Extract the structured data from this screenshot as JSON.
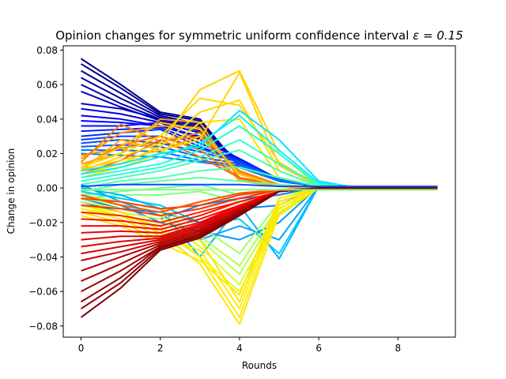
{
  "chart_data": {
    "type": "line",
    "title": "Opinion changes for symmetric uniform confidence interval ε = 0.15",
    "title_prefix": "Opinion changes for symmetric uniform confidence interval ",
    "title_math": "ε = 0.15",
    "xlabel": "Rounds",
    "ylabel": "Change in opinion",
    "xlim": [
      -0.45,
      9.45
    ],
    "ylim": [
      -0.0865,
      0.0825
    ],
    "xticks": [
      0,
      2,
      4,
      6,
      8
    ],
    "xtick_labels": [
      "0",
      "2",
      "4",
      "6",
      "8"
    ],
    "yticks": [
      -0.08,
      -0.06,
      -0.04,
      -0.02,
      0.0,
      0.02,
      0.04,
      0.06,
      0.08
    ],
    "ytick_labels": [
      "−0.08",
      "−0.06",
      "−0.04",
      "−0.02",
      "0.00",
      "0.02",
      "0.04",
      "0.06",
      "0.08"
    ],
    "grid": false,
    "legend": "none",
    "colormap": "jet",
    "x": [
      0,
      1,
      2,
      3,
      4,
      5,
      6,
      7,
      8,
      9
    ],
    "series": [
      {
        "color": "#00008f",
        "values": [
          0.075,
          0.06,
          0.044,
          0.04,
          0.012,
          0.004,
          0.001,
          0.001,
          0.001,
          0.001
        ]
      },
      {
        "color": "#00008f",
        "values": [
          0.072,
          0.058,
          0.043,
          0.039,
          0.013,
          0.004,
          0.001,
          0.001,
          0.001,
          0.001
        ]
      },
      {
        "color": "#000096",
        "values": [
          0.068,
          0.055,
          0.042,
          0.037,
          0.014,
          0.004,
          0.001,
          0.001,
          0.001,
          0.001
        ]
      },
      {
        "color": "#0000a0",
        "values": [
          0.064,
          0.052,
          0.041,
          0.036,
          0.014,
          0.004,
          0.001,
          0.001,
          0.001,
          0.001
        ]
      },
      {
        "color": "#0000aa",
        "values": [
          0.06,
          0.049,
          0.04,
          0.035,
          0.015,
          0.004,
          0.001,
          0.001,
          0.001,
          0.001
        ]
      },
      {
        "color": "#0000b8",
        "values": [
          0.056,
          0.047,
          0.039,
          0.034,
          0.015,
          0.004,
          0.001,
          0.001,
          0.001,
          0.001
        ]
      },
      {
        "color": "#0000c8",
        "values": [
          0.049,
          0.046,
          0.04,
          0.033,
          0.016,
          0.004,
          0.001,
          0.001,
          0.001,
          0.001
        ]
      },
      {
        "color": "#0000d8",
        "values": [
          0.046,
          0.043,
          0.038,
          0.032,
          0.016,
          0.004,
          0.001,
          0.001,
          0.001,
          0.001
        ]
      },
      {
        "color": "#0000ff",
        "values": [
          0.042,
          0.04,
          0.036,
          0.03,
          0.016,
          0.004,
          0.001,
          0.001,
          0.001,
          0.001
        ]
      },
      {
        "color": "#0000ff",
        "values": [
          0.039,
          0.038,
          0.036,
          0.029,
          0.017,
          0.005,
          0.001,
          0.001,
          0.001,
          0.001
        ]
      },
      {
        "color": "#0010ff",
        "values": [
          0.036,
          0.036,
          0.038,
          0.028,
          0.017,
          0.005,
          0.001,
          0.001,
          0.001,
          0.001
        ]
      },
      {
        "color": "#0020ff",
        "values": [
          0.033,
          0.034,
          0.035,
          0.026,
          0.016,
          0.005,
          0.001,
          0.001,
          0.001,
          0.001
        ]
      },
      {
        "color": "#0030ff",
        "values": [
          0.03,
          0.032,
          0.034,
          0.024,
          0.016,
          0.005,
          0.001,
          0.001,
          0.001,
          0.001
        ]
      },
      {
        "color": "#0040ff",
        "values": [
          0.028,
          0.03,
          0.03,
          0.023,
          0.015,
          0.005,
          0.001,
          0.001,
          0.001,
          0.001
        ]
      },
      {
        "color": "#0050ff",
        "values": [
          0.026,
          0.028,
          0.026,
          0.021,
          0.015,
          0.005,
          0.001,
          0.001,
          0.001,
          0.001
        ]
      },
      {
        "color": "#0060ff",
        "values": [
          0.024,
          0.025,
          0.024,
          0.018,
          0.014,
          0.005,
          0.001,
          0.001,
          0.001,
          0.001
        ]
      },
      {
        "color": "#0070ff",
        "values": [
          0.022,
          0.022,
          0.021,
          0.016,
          0.013,
          0.005,
          0.001,
          0.001,
          0.001,
          0.001
        ]
      },
      {
        "color": "#0080ff",
        "values": [
          0.02,
          0.019,
          0.018,
          0.015,
          0.012,
          0.004,
          0.001,
          0.001,
          0.001,
          0.001
        ]
      },
      {
        "color": "#ff8c00",
        "values": [
          0.019,
          0.023,
          0.027,
          0.032,
          0.009,
          0.002,
          0.0,
          0.0,
          0.0,
          0.0
        ]
      },
      {
        "color": "#ff9a00",
        "values": [
          0.017,
          0.032,
          0.036,
          0.035,
          0.006,
          0.002,
          0.0,
          0.0,
          0.0,
          0.0
        ]
      },
      {
        "color": "#ff8000",
        "values": [
          0.015,
          0.037,
          0.027,
          0.03,
          0.01,
          0.002,
          0.0,
          0.0,
          0.0,
          0.0
        ]
      },
      {
        "color": "#ffa000",
        "values": [
          0.014,
          0.02,
          0.04,
          0.038,
          0.005,
          0.002,
          0.0,
          0.0,
          0.0,
          0.0
        ]
      },
      {
        "color": "#ff7000",
        "values": [
          0.012,
          0.025,
          0.03,
          0.022,
          0.006,
          0.001,
          0.0,
          0.0,
          0.0,
          0.0
        ]
      },
      {
        "color": "#ffb000",
        "values": [
          0.01,
          0.028,
          0.022,
          0.03,
          0.004,
          0.001,
          0.0,
          0.0,
          0.0,
          0.0
        ]
      },
      {
        "color": "#ff6000",
        "values": [
          0.008,
          0.016,
          0.028,
          0.018,
          0.006,
          0.001,
          0.0,
          0.0,
          0.0,
          0.0
        ]
      },
      {
        "color": "#ffc000",
        "values": [
          0.012,
          0.024,
          0.038,
          0.034,
          0.008,
          0.001,
          0.0,
          0.0,
          0.0,
          0.0
        ]
      },
      {
        "color": "#ffd200",
        "values": [
          0.01,
          0.018,
          0.026,
          0.057,
          0.068,
          0.02,
          0.001,
          0.0,
          0.0,
          0.0
        ]
      },
      {
        "color": "#ffd700",
        "values": [
          0.012,
          0.02,
          0.03,
          0.052,
          0.048,
          0.015,
          0.001,
          0.0,
          0.0,
          0.0
        ]
      },
      {
        "color": "#ffdc00",
        "values": [
          0.008,
          0.014,
          0.024,
          0.044,
          0.051,
          0.01,
          0.001,
          0.0,
          0.0,
          0.0
        ]
      },
      {
        "color": "#ffe000",
        "values": [
          0.006,
          0.012,
          0.02,
          0.038,
          0.04,
          0.006,
          0.001,
          0.0,
          0.0,
          0.0
        ]
      },
      {
        "color": "#ffd400",
        "values": [
          0.011,
          0.016,
          0.022,
          0.028,
          0.067,
          0.013,
          0.001,
          0.0,
          0.0,
          0.0
        ]
      },
      {
        "color": "#00e6ff",
        "values": [
          0.01,
          0.014,
          0.02,
          0.024,
          0.045,
          0.028,
          0.004,
          0.0,
          0.0,
          0.0
        ]
      },
      {
        "color": "#10f0ee",
        "values": [
          0.008,
          0.012,
          0.018,
          0.026,
          0.042,
          0.022,
          0.003,
          0.0,
          0.0,
          0.0
        ]
      },
      {
        "color": "#20ffdf",
        "values": [
          0.006,
          0.01,
          0.014,
          0.022,
          0.036,
          0.02,
          0.002,
          0.0,
          0.0,
          0.0
        ]
      },
      {
        "color": "#30ffcf",
        "values": [
          0.004,
          0.008,
          0.012,
          0.018,
          0.028,
          0.014,
          0.002,
          0.0,
          0.0,
          0.0
        ]
      },
      {
        "color": "#40ffbf",
        "values": [
          0.002,
          0.006,
          0.01,
          0.016,
          0.022,
          0.01,
          0.001,
          0.0,
          0.0,
          0.0
        ]
      },
      {
        "color": "#50ffaf",
        "values": [
          0.0,
          0.004,
          0.006,
          0.01,
          0.012,
          0.006,
          0.001,
          0.0,
          0.0,
          0.0
        ]
      },
      {
        "color": "#60ff9f",
        "values": [
          -0.002,
          0.002,
          0.004,
          0.006,
          0.004,
          0.002,
          0.0,
          0.0,
          0.0,
          0.0
        ]
      },
      {
        "color": "#70ff8f",
        "values": [
          -0.004,
          -0.002,
          0.0,
          0.002,
          -0.004,
          -0.002,
          0.0,
          0.0,
          0.0,
          0.0
        ]
      },
      {
        "color": "#80ff80",
        "values": [
          -0.006,
          -0.004,
          -0.004,
          -0.002,
          -0.008,
          -0.004,
          0.0,
          0.0,
          0.0,
          0.0
        ]
      },
      {
        "color": "#00c8ff",
        "values": [
          -0.002,
          -0.006,
          -0.01,
          -0.02,
          -0.018,
          -0.038,
          0.001,
          0.0,
          0.0,
          0.0
        ]
      },
      {
        "color": "#00b8ff",
        "values": [
          0.0,
          -0.004,
          -0.012,
          -0.04,
          -0.01,
          -0.041,
          0.001,
          0.0,
          0.0,
          0.0
        ]
      },
      {
        "color": "#00a8ff",
        "values": [
          0.002,
          -0.008,
          -0.016,
          -0.03,
          -0.022,
          -0.03,
          0.001,
          0.0,
          0.0,
          0.0
        ]
      },
      {
        "color": "#0098ff",
        "values": [
          -0.004,
          -0.01,
          -0.02,
          -0.025,
          -0.03,
          -0.02,
          0.001,
          0.0,
          0.0,
          0.0
        ]
      },
      {
        "color": "#0088ff",
        "values": [
          -0.006,
          -0.012,
          -0.014,
          -0.02,
          -0.012,
          -0.01,
          0.001,
          0.0,
          0.0,
          0.0
        ]
      },
      {
        "color": "#1080ff",
        "values": [
          -0.008,
          -0.014,
          -0.018,
          -0.01,
          -0.006,
          -0.004,
          0.001,
          0.0,
          0.0,
          0.0
        ]
      },
      {
        "color": "#c0ff40",
        "values": [
          -0.008,
          -0.012,
          -0.016,
          -0.03,
          -0.05,
          -0.012,
          0.0,
          0.0,
          0.0,
          0.0
        ]
      },
      {
        "color": "#b0ff50",
        "values": [
          -0.006,
          -0.01,
          -0.014,
          -0.028,
          -0.045,
          -0.01,
          0.0,
          0.0,
          0.0,
          0.0
        ]
      },
      {
        "color": "#d0ff30",
        "values": [
          -0.01,
          -0.014,
          -0.018,
          -0.034,
          -0.056,
          -0.014,
          0.0,
          0.0,
          0.0,
          0.0
        ]
      },
      {
        "color": "#a0ff60",
        "values": [
          -0.004,
          -0.008,
          -0.012,
          -0.022,
          -0.038,
          -0.008,
          0.0,
          0.0,
          0.0,
          0.0
        ]
      },
      {
        "color": "#e0ff20",
        "values": [
          -0.01,
          -0.016,
          -0.022,
          -0.04,
          -0.06,
          -0.016,
          0.0,
          0.0,
          0.0,
          0.0
        ]
      },
      {
        "color": "#ffe600",
        "values": [
          -0.012,
          -0.016,
          -0.026,
          -0.044,
          -0.079,
          -0.015,
          0.0,
          0.0,
          0.0,
          0.0
        ]
      },
      {
        "color": "#ffea00",
        "values": [
          -0.01,
          -0.014,
          -0.024,
          -0.04,
          -0.075,
          -0.012,
          0.0,
          0.0,
          0.0,
          0.0
        ]
      },
      {
        "color": "#ffee00",
        "values": [
          -0.012,
          -0.018,
          -0.028,
          -0.036,
          -0.07,
          -0.01,
          0.0,
          0.0,
          0.0,
          0.0
        ]
      },
      {
        "color": "#ffe400",
        "values": [
          -0.014,
          -0.02,
          -0.03,
          -0.03,
          -0.066,
          -0.008,
          0.0,
          0.0,
          0.0,
          0.0
        ]
      },
      {
        "color": "#ffe800",
        "values": [
          -0.016,
          -0.022,
          -0.032,
          -0.042,
          -0.062,
          -0.006,
          0.0,
          0.0,
          0.0,
          0.0
        ]
      },
      {
        "color": "#ff4000",
        "values": [
          -0.006,
          -0.008,
          -0.012,
          -0.01,
          -0.004,
          -0.001,
          0.0,
          0.0,
          0.0,
          0.0
        ]
      },
      {
        "color": "#ff3000",
        "values": [
          -0.01,
          -0.012,
          -0.016,
          -0.012,
          -0.006,
          -0.001,
          0.0,
          0.0,
          0.0,
          0.0
        ]
      },
      {
        "color": "#ff5000",
        "values": [
          -0.004,
          -0.01,
          -0.014,
          -0.008,
          -0.003,
          -0.001,
          0.0,
          0.0,
          0.0,
          0.0
        ]
      },
      {
        "color": "#ff2000",
        "values": [
          -0.014,
          -0.016,
          -0.02,
          -0.014,
          -0.008,
          -0.002,
          0.0,
          0.0,
          0.0,
          0.0
        ]
      },
      {
        "color": "#ff1000",
        "values": [
          -0.018,
          -0.019,
          -0.022,
          -0.016,
          -0.008,
          -0.002,
          0.0,
          0.0,
          0.0,
          0.0
        ]
      },
      {
        "color": "#ff0000",
        "values": [
          -0.022,
          -0.022,
          -0.024,
          -0.018,
          -0.01,
          -0.002,
          0.0,
          0.0,
          0.0,
          0.0
        ]
      },
      {
        "color": "#f00000",
        "values": [
          -0.026,
          -0.025,
          -0.026,
          -0.02,
          -0.01,
          -0.002,
          0.0,
          0.0,
          0.0,
          0.0
        ]
      },
      {
        "color": "#e60000",
        "values": [
          -0.03,
          -0.028,
          -0.028,
          -0.021,
          -0.011,
          -0.002,
          0.0,
          0.0,
          0.0,
          0.0
        ]
      },
      {
        "color": "#dc0000",
        "values": [
          -0.034,
          -0.031,
          -0.029,
          -0.022,
          -0.012,
          -0.002,
          0.0,
          0.0,
          0.0,
          0.0
        ]
      },
      {
        "color": "#d20000",
        "values": [
          -0.038,
          -0.034,
          -0.03,
          -0.023,
          -0.012,
          -0.002,
          0.0,
          0.0,
          0.0,
          0.0
        ]
      },
      {
        "color": "#c80000",
        "values": [
          -0.042,
          -0.037,
          -0.031,
          -0.024,
          -0.013,
          -0.002,
          0.0,
          0.0,
          0.0,
          0.0
        ]
      },
      {
        "color": "#b40000",
        "values": [
          -0.048,
          -0.04,
          -0.032,
          -0.025,
          -0.013,
          -0.002,
          0.0,
          0.0,
          0.0,
          0.0
        ]
      },
      {
        "color": "#aa0000",
        "values": [
          -0.054,
          -0.044,
          -0.033,
          -0.026,
          -0.014,
          -0.002,
          0.0,
          0.0,
          0.0,
          0.0
        ]
      },
      {
        "color": "#a00000",
        "values": [
          -0.06,
          -0.048,
          -0.034,
          -0.027,
          -0.014,
          -0.002,
          0.0,
          0.0,
          0.0,
          0.0
        ]
      },
      {
        "color": "#960000",
        "values": [
          -0.066,
          -0.052,
          -0.034,
          -0.028,
          -0.015,
          -0.002,
          0.0,
          0.0,
          0.0,
          0.0
        ]
      },
      {
        "color": "#8c0000",
        "values": [
          -0.07,
          -0.055,
          -0.035,
          -0.028,
          -0.015,
          -0.002,
          0.0,
          0.0,
          0.0,
          0.0
        ]
      },
      {
        "color": "#800000",
        "values": [
          -0.075,
          -0.058,
          -0.036,
          -0.029,
          -0.016,
          -0.002,
          0.0,
          0.0,
          0.0,
          0.0
        ]
      },
      {
        "color": "#0050ff",
        "values": [
          0.001,
          0.002,
          0.002,
          0.002,
          0.002,
          0.001,
          0.001,
          0.001,
          0.001,
          0.001
        ]
      },
      {
        "color": "#7cff79",
        "values": [
          -0.001,
          -0.001,
          -0.001,
          -0.001,
          -0.001,
          -0.001,
          -0.001,
          -0.001,
          -0.001,
          -0.001
        ]
      }
    ]
  }
}
